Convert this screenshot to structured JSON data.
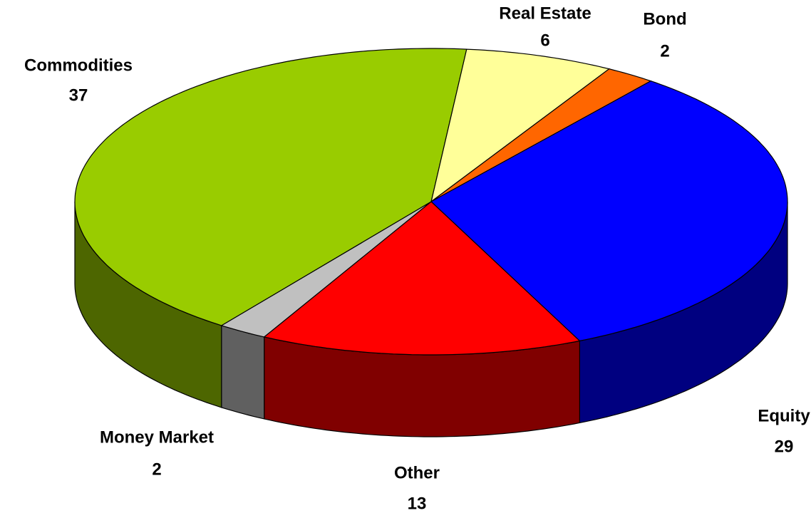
{
  "chart_data": {
    "type": "pie3d",
    "categories": [
      "Real Estate",
      "Bond",
      "Equity",
      "Other",
      "Money Market",
      "Commodities"
    ],
    "values": [
      6,
      2,
      29,
      13,
      2,
      37
    ],
    "colors": [
      "#ffff99",
      "#ff6600",
      "#0000ff",
      "#ff0000",
      "#c0c0c0",
      "#99cc00"
    ]
  }
}
